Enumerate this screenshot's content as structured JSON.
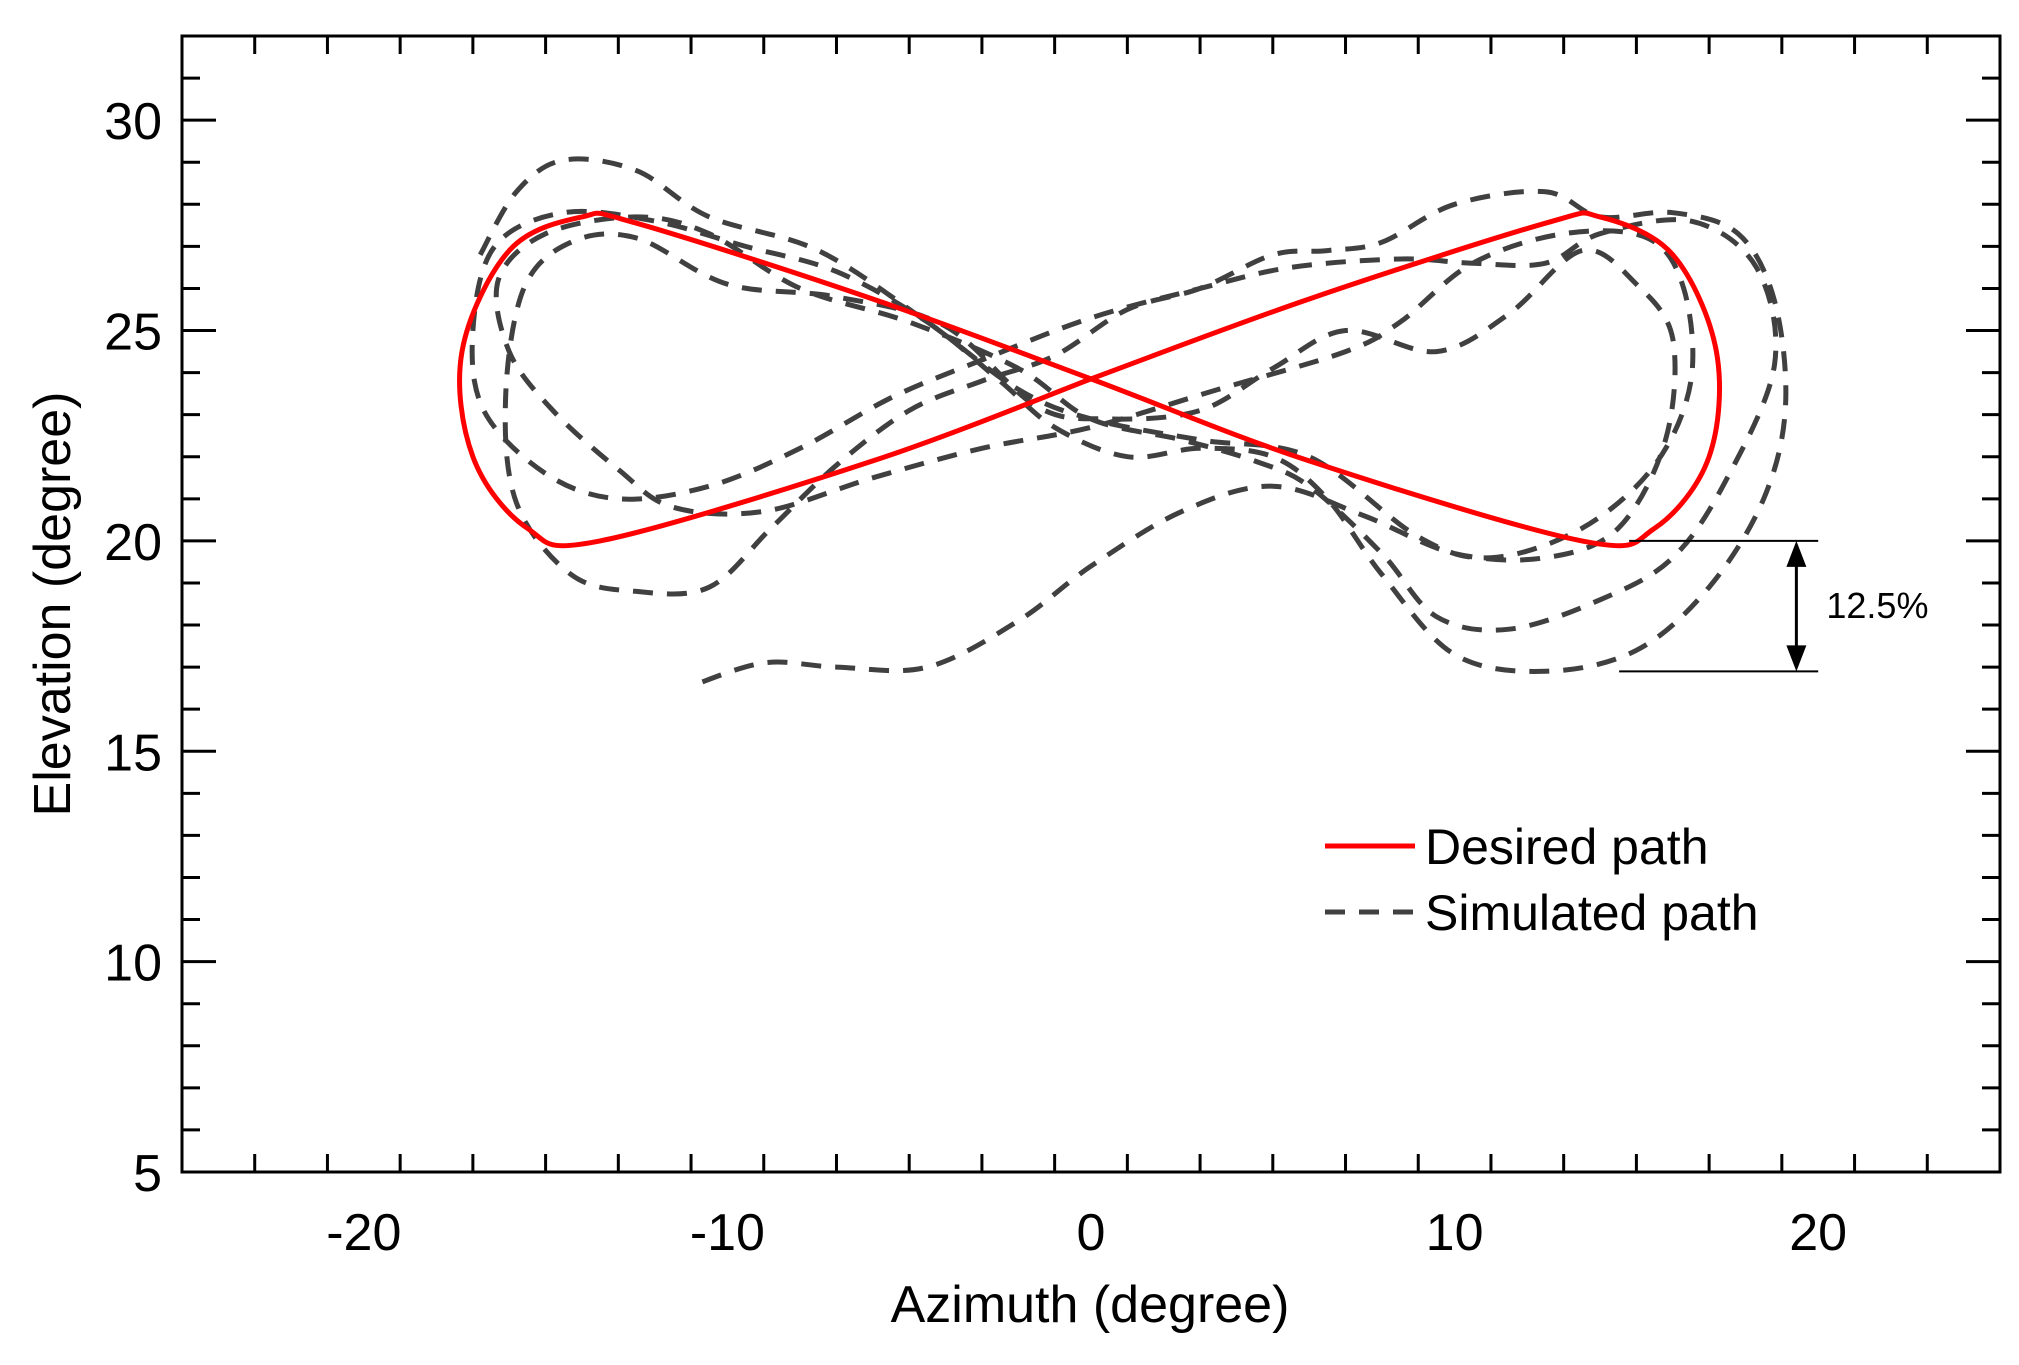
{
  "chart_data": {
    "type": "line",
    "title": "",
    "xlabel": "Azimuth (degree)",
    "ylabel": "Elevation (degree)",
    "xlim": [
      -25,
      25
    ],
    "ylim": [
      5,
      32
    ],
    "xticks": [
      -20,
      -10,
      0,
      10,
      20
    ],
    "xtick_labels": [
      "-20",
      "-10",
      "0",
      "10",
      "20"
    ],
    "yticks": [
      5,
      10,
      15,
      20,
      25,
      30
    ],
    "ytick_labels": [
      "5",
      "10",
      "15",
      "20",
      "25",
      "30"
    ],
    "grid": false,
    "legend_position": "center-right",
    "colors": {
      "desired": "#ff0000",
      "simulated": "#404040",
      "axis": "#000000"
    },
    "series": [
      {
        "name": "Desired path",
        "style": "solid",
        "points": [
          [
            0,
            23.85
          ],
          [
            6,
            25.75
          ],
          [
            12.5,
            27.55
          ],
          [
            14,
            27.7
          ],
          [
            16,
            26.8
          ],
          [
            17.2,
            24.5
          ],
          [
            17,
            22
          ],
          [
            15.5,
            20.3
          ],
          [
            13.5,
            20
          ],
          [
            6,
            21.9
          ],
          [
            0,
            23.85
          ],
          [
            -6,
            25.75
          ],
          [
            -12.5,
            27.55
          ],
          [
            -14,
            27.7
          ],
          [
            -16,
            26.9
          ],
          [
            -17.3,
            24.5
          ],
          [
            -17,
            22
          ],
          [
            -15.5,
            20.3
          ],
          [
            -13.5,
            20
          ],
          [
            -6,
            21.9
          ],
          [
            0,
            23.85
          ]
        ]
      },
      {
        "name": "Simulated path",
        "style": "dashed",
        "points": [
          [
            -16.8,
            26.8
          ],
          [
            -15.8,
            28.3
          ],
          [
            -14.5,
            29.05
          ],
          [
            -12.5,
            28.8
          ],
          [
            -10.5,
            27.7
          ],
          [
            -7.5,
            26.9
          ],
          [
            -4.5,
            25.2
          ],
          [
            -2,
            23.6
          ],
          [
            0,
            22.9
          ],
          [
            3,
            22.4
          ],
          [
            6,
            22
          ],
          [
            9,
            20.1
          ],
          [
            11,
            19.6
          ],
          [
            13.5,
            20.3
          ],
          [
            15.5,
            21.8
          ],
          [
            16.5,
            23.8
          ],
          [
            16.3,
            26
          ],
          [
            15.3,
            27.2
          ],
          [
            13,
            27.3
          ],
          [
            10.5,
            26.6
          ],
          [
            8.5,
            25.2
          ],
          [
            7,
            24.5
          ],
          [
            3.5,
            23.6
          ],
          [
            0,
            22.7
          ],
          [
            -3,
            22.2
          ],
          [
            -6,
            21.5
          ],
          [
            -9,
            20.7
          ],
          [
            -11.5,
            20.8
          ],
          [
            -13,
            21.7
          ],
          [
            -14.8,
            23.1
          ],
          [
            -16,
            24.5
          ],
          [
            -16.3,
            26.2
          ],
          [
            -15,
            27.3
          ],
          [
            -12.5,
            27.7
          ],
          [
            -10.5,
            27.3
          ],
          [
            -8,
            26
          ],
          [
            -5,
            25.2
          ],
          [
            -2,
            24.1
          ],
          [
            0,
            22.9
          ],
          [
            2.5,
            22.4
          ],
          [
            4.5,
            21.9
          ],
          [
            6,
            21.3
          ],
          [
            8,
            19.7
          ],
          [
            9.5,
            18.2
          ],
          [
            11.5,
            17.9
          ],
          [
            14,
            18.6
          ],
          [
            16,
            19.6
          ],
          [
            17.5,
            21.5
          ],
          [
            18.8,
            24.2
          ],
          [
            18.3,
            26.5
          ],
          [
            16.5,
            27.6
          ],
          [
            14,
            27.3
          ],
          [
            12.5,
            26.6
          ],
          [
            10.5,
            26.6
          ],
          [
            8.5,
            26.7
          ],
          [
            5.5,
            26.5
          ],
          [
            3,
            26
          ],
          [
            0,
            25.3
          ],
          [
            -3,
            24.3
          ],
          [
            -5.5,
            23.4
          ],
          [
            -8,
            22.2
          ],
          [
            -10.5,
            21.3
          ],
          [
            -13,
            21
          ],
          [
            -15,
            21.6
          ],
          [
            -16.7,
            23.1
          ],
          [
            -17,
            25
          ],
          [
            -16.4,
            27
          ],
          [
            -14.5,
            27.8
          ],
          [
            -12,
            27.6
          ],
          [
            -9.5,
            27
          ],
          [
            -7,
            26.4
          ],
          [
            -4.5,
            25.2
          ],
          [
            -2.5,
            23.8
          ],
          [
            -1,
            22.7
          ],
          [
            1,
            22
          ],
          [
            3,
            22.2
          ],
          [
            5,
            22
          ],
          [
            6.5,
            21
          ],
          [
            8,
            19.2
          ],
          [
            10,
            17.3
          ],
          [
            12.5,
            16.9
          ],
          [
            15,
            17.4
          ],
          [
            17,
            18.9
          ],
          [
            18.5,
            21
          ],
          [
            19.1,
            23.2
          ],
          [
            18.8,
            25.7
          ],
          [
            17.8,
            27.3
          ],
          [
            16,
            27.8
          ],
          [
            14,
            27.7
          ],
          [
            12.5,
            28.3
          ],
          [
            10,
            28
          ],
          [
            8,
            27.1
          ],
          [
            6.5,
            26.9
          ],
          [
            5,
            26.8
          ],
          [
            3,
            26
          ],
          [
            1,
            25.5
          ],
          [
            -1,
            24.4
          ],
          [
            -3,
            23.8
          ],
          [
            -5,
            23.1
          ],
          [
            -7,
            21.8
          ],
          [
            -8.8,
            20.3
          ],
          [
            -10.5,
            18.9
          ],
          [
            -12.5,
            18.8
          ],
          [
            -14.3,
            19.2
          ],
          [
            -15.8,
            20.9
          ],
          [
            -16.1,
            23.4
          ],
          [
            -15.6,
            26
          ],
          [
            -14.3,
            27.1
          ],
          [
            -12.5,
            27.2
          ],
          [
            -10,
            26.1
          ],
          [
            -7,
            25.8
          ],
          [
            -4,
            25.1
          ],
          [
            -1.5,
            23.2
          ],
          [
            0.5,
            22.9
          ],
          [
            3,
            23.1
          ],
          [
            5,
            24.1
          ],
          [
            7,
            25
          ],
          [
            9.5,
            24.5
          ],
          [
            11.5,
            25.4
          ],
          [
            13.5,
            26.9
          ],
          [
            15,
            26.1
          ],
          [
            16,
            24.8
          ],
          [
            15.8,
            22.4
          ],
          [
            14.5,
            20.3
          ],
          [
            12.5,
            19.6
          ],
          [
            10,
            19.7
          ],
          [
            7.5,
            20.6
          ],
          [
            5,
            21.3
          ],
          [
            2.5,
            20.7
          ],
          [
            0,
            19.4
          ],
          [
            -2,
            18.1
          ],
          [
            -4.5,
            17
          ],
          [
            -7,
            17
          ],
          [
            -9,
            17.1
          ],
          [
            -11,
            16.55
          ]
        ]
      }
    ],
    "annotations": [
      {
        "text": "12.5%",
        "type": "vertical-double-arrow",
        "x": 19.4,
        "y_from": 16.9,
        "y_to": 20,
        "ref_x_from": 14.8,
        "ref_x_to": 20
      }
    ]
  },
  "legend": {
    "desired_label": "Desired path",
    "simulated_label": "Simulated path"
  }
}
